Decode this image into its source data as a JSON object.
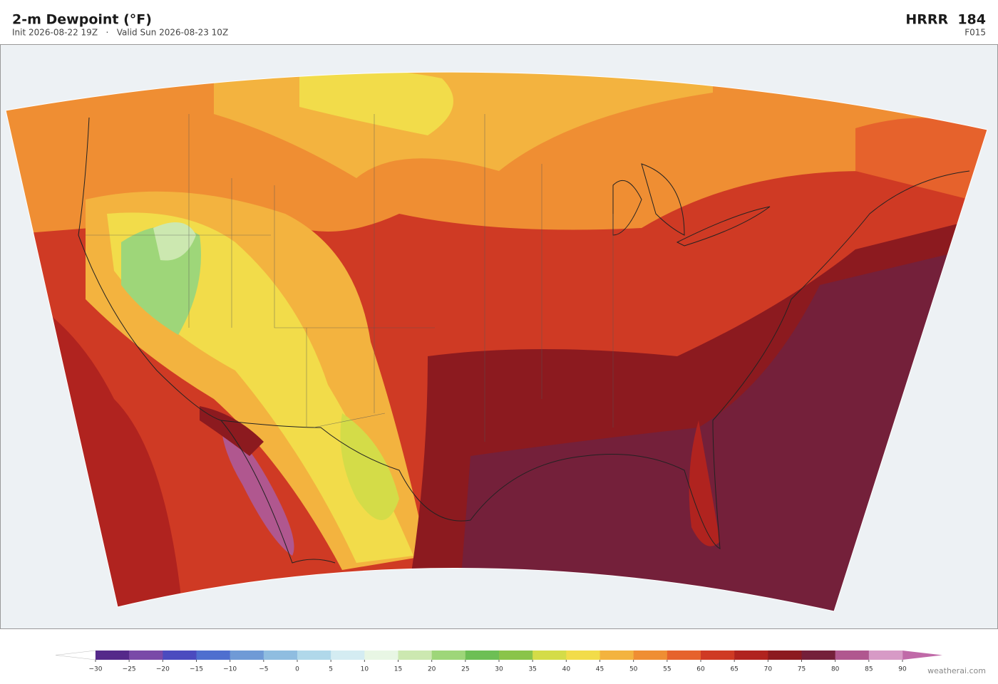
{
  "header": {
    "title": "2-m Dewpoint  (°F)",
    "subtitle": "Init 2026-08-22 19Z   ·   Valid Sun 2026-08-23 10Z",
    "model": "HRRR  184",
    "forecast_hour": "F015"
  },
  "colorbar": {
    "ticks": [
      {
        "value": -30,
        "label": "−30"
      },
      {
        "value": -25,
        "label": "−25"
      },
      {
        "value": -20,
        "label": "−20"
      },
      {
        "value": -15,
        "label": "−15"
      },
      {
        "value": -10,
        "label": "−10"
      },
      {
        "value": -5,
        "label": "−5"
      },
      0,
      5,
      10,
      15,
      20,
      25,
      30,
      35,
      40,
      45,
      50,
      55,
      60,
      65,
      70,
      75,
      80,
      85,
      90
    ],
    "colors": [
      "#55298a",
      "#7a4aa8",
      "#4b4bbf",
      "#4f6fcf",
      "#6f9ad6",
      "#8fbde0",
      "#b0d8ea",
      "#d4ecf2",
      "#e8f6e4",
      "#cce8b0",
      "#9ed679",
      "#6dbf55",
      "#8ac44a",
      "#d4dc48",
      "#f2dc4a",
      "#f3b33f",
      "#ef8e33",
      "#e6622c",
      "#cf3a24",
      "#b0231f",
      "#8c1a1f",
      "#74203a",
      "#b0578f",
      "#d79ac6"
    ],
    "under_color": "#ffffff",
    "over_color": "#c06aa8"
  },
  "credit": "weatherai.com"
}
